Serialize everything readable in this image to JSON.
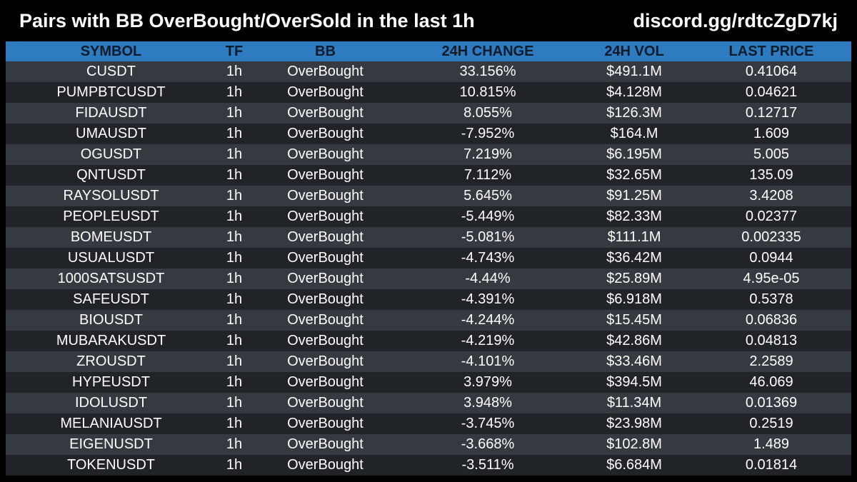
{
  "header": {
    "title": "Pairs with BB OverBought/OverSold in the last 1h",
    "link": "discord.gg/rdtcZgD7kj"
  },
  "colors": {
    "background": "#000000",
    "header_row": "#2e7bbf",
    "header_text": "#0d1b2a",
    "row_light": "#343a40",
    "row_dark": "#202428",
    "cell_text": "#ffffff"
  },
  "table": {
    "columns": [
      "SYMBOL",
      "TF",
      "BB",
      "24H CHANGE",
      "24H VOL",
      "LAST PRICE"
    ],
    "rows": [
      [
        "CUSDT",
        "1h",
        "OverBought",
        "33.156%",
        "$491.1M",
        "0.41064"
      ],
      [
        "PUMPBTCUSDT",
        "1h",
        "OverBought",
        "10.815%",
        "$4.128M",
        "0.04621"
      ],
      [
        "FIDAUSDT",
        "1h",
        "OverBought",
        "8.055%",
        "$126.3M",
        "0.12717"
      ],
      [
        "UMAUSDT",
        "1h",
        "OverBought",
        "-7.952%",
        "$164.M",
        "1.609"
      ],
      [
        "OGUSDT",
        "1h",
        "OverBought",
        "7.219%",
        "$6.195M",
        "5.005"
      ],
      [
        "QNTUSDT",
        "1h",
        "OverBought",
        "7.112%",
        "$32.65M",
        "135.09"
      ],
      [
        "RAYSOLUSDT",
        "1h",
        "OverBought",
        "5.645%",
        "$91.25M",
        "3.4208"
      ],
      [
        "PEOPLEUSDT",
        "1h",
        "OverBought",
        "-5.449%",
        "$82.33M",
        "0.02377"
      ],
      [
        "BOMEUSDT",
        "1h",
        "OverBought",
        "-5.081%",
        "$111.1M",
        "0.002335"
      ],
      [
        "USUALUSDT",
        "1h",
        "OverBought",
        "-4.743%",
        "$36.42M",
        "0.0944"
      ],
      [
        "1000SATSUSDT",
        "1h",
        "OverBought",
        "-4.44%",
        "$25.89M",
        "4.95e-05"
      ],
      [
        "SAFEUSDT",
        "1h",
        "OverBought",
        "-4.391%",
        "$6.918M",
        "0.5378"
      ],
      [
        "BIOUSDT",
        "1h",
        "OverBought",
        "-4.244%",
        "$15.45M",
        "0.06836"
      ],
      [
        "MUBARAKUSDT",
        "1h",
        "OverBought",
        "-4.219%",
        "$42.86M",
        "0.04813"
      ],
      [
        "ZROUSDT",
        "1h",
        "OverBought",
        "-4.101%",
        "$33.46M",
        "2.2589"
      ],
      [
        "HYPEUSDT",
        "1h",
        "OverBought",
        "3.979%",
        "$394.5M",
        "46.069"
      ],
      [
        "IDOLUSDT",
        "1h",
        "OverBought",
        "3.948%",
        "$11.34M",
        "0.01369"
      ],
      [
        "MELANIAUSDT",
        "1h",
        "OverBought",
        "-3.745%",
        "$23.98M",
        "0.2519"
      ],
      [
        "EIGENUSDT",
        "1h",
        "OverBought",
        "-3.668%",
        "$102.8M",
        "1.489"
      ],
      [
        "TOKENUSDT",
        "1h",
        "OverBought",
        "-3.511%",
        "$6.684M",
        "0.01814"
      ]
    ]
  }
}
